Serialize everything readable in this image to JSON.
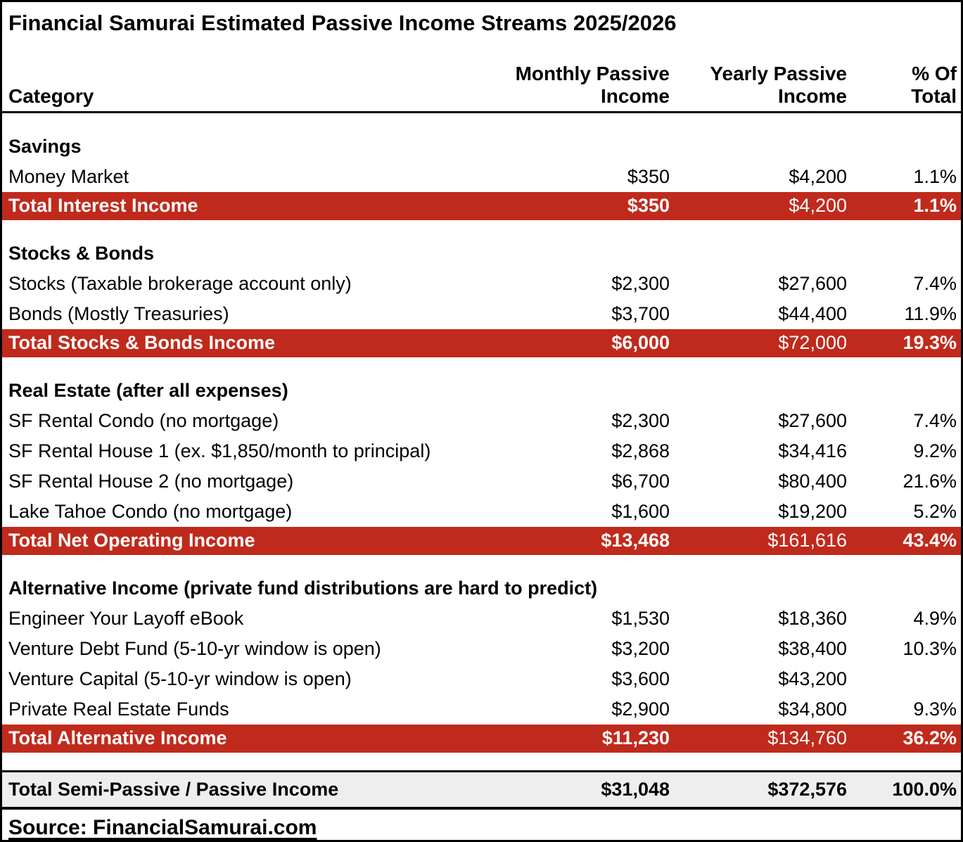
{
  "title": "Financial Samurai Estimated Passive Income Streams 2025/2026",
  "columns": {
    "category": "Category",
    "monthly": "Monthly Passive\nIncome",
    "yearly": "Yearly Passive\nIncome",
    "pct": "% Of\nTotal"
  },
  "sections": [
    {
      "header": "Savings",
      "rows": [
        {
          "label": "Money Market",
          "monthly": "$350",
          "yearly": "$4,200",
          "pct": "1.1%"
        }
      ],
      "total": {
        "label": "Total Interest Income",
        "monthly": "$350",
        "yearly": "$4,200",
        "pct": "1.1%"
      }
    },
    {
      "header": "Stocks & Bonds",
      "rows": [
        {
          "label": "Stocks (Taxable brokerage account only)",
          "monthly": "$2,300",
          "yearly": "$27,600",
          "pct": "7.4%"
        },
        {
          "label": "Bonds (Mostly Treasuries)",
          "monthly": "$3,700",
          "yearly": "$44,400",
          "pct": "11.9%"
        }
      ],
      "total": {
        "label": "Total Stocks & Bonds Income",
        "monthly": "$6,000",
        "yearly": "$72,000",
        "pct": "19.3%"
      }
    },
    {
      "header": "Real Estate (after all expenses)",
      "rows": [
        {
          "label": "SF Rental Condo (no mortgage)",
          "monthly": "$2,300",
          "yearly": "$27,600",
          "pct": "7.4%"
        },
        {
          "label": "SF Rental House 1 (ex. $1,850/month to principal)",
          "monthly": "$2,868",
          "yearly": "$34,416",
          "pct": "9.2%"
        },
        {
          "label": "SF Rental House 2 (no mortgage)",
          "monthly": "$6,700",
          "yearly": "$80,400",
          "pct": "21.6%"
        },
        {
          "label": "Lake Tahoe Condo (no mortgage)",
          "monthly": "$1,600",
          "yearly": "$19,200",
          "pct": "5.2%"
        }
      ],
      "total": {
        "label": "Total Net Operating Income",
        "monthly": "$13,468",
        "yearly": "$161,616",
        "pct": "43.4%"
      }
    },
    {
      "header": "Alternative Income (private fund distributions are hard to predict)",
      "rows": [
        {
          "label": "Engineer Your Layoff eBook",
          "monthly": "$1,530",
          "yearly": "$18,360",
          "pct": "4.9%"
        },
        {
          "label": "Venture Debt Fund (5-10-yr window is open)",
          "monthly": "$3,200",
          "yearly": "$38,400",
          "pct": "10.3%"
        },
        {
          "label": "Venture Capital (5-10-yr window is open)",
          "monthly": "$3,600",
          "yearly": "$43,200",
          "pct": ""
        },
        {
          "label": "Private Real Estate Funds",
          "monthly": "$2,900",
          "yearly": "$34,800",
          "pct": "9.3%"
        }
      ],
      "total": {
        "label": "Total Alternative Income",
        "monthly": "$11,230",
        "yearly": "$134,760",
        "pct": "36.2%"
      }
    }
  ],
  "grand_total": {
    "label": "Total Semi-Passive / Passive Income",
    "monthly": "$31,048",
    "yearly": "$372,576",
    "pct": "100.0%"
  },
  "source": "Source: FinancialSamurai.com",
  "colors": {
    "total_row_bg": "#C02A1C",
    "total_row_text": "#FFFFFF",
    "grand_total_bg": "#EEEEEE",
    "border": "#000000",
    "body_text": "#000000"
  },
  "chart_data": {
    "type": "table",
    "title": "Financial Samurai Estimated Passive Income Streams 2025/2026",
    "columns": [
      "Category",
      "Monthly Passive Income",
      "Yearly Passive Income",
      "% Of Total"
    ],
    "rows": [
      [
        "Savings",
        "",
        "",
        "",
        "section"
      ],
      [
        "Money Market",
        "$350",
        "$4,200",
        "1.1%",
        "item"
      ],
      [
        "Total Interest Income",
        "$350",
        "$4,200",
        "1.1%",
        "total"
      ],
      [
        "Stocks & Bonds",
        "",
        "",
        "",
        "section"
      ],
      [
        "Stocks (Taxable brokerage account only)",
        "$2,300",
        "$27,600",
        "7.4%",
        "item"
      ],
      [
        "Bonds (Mostly Treasuries)",
        "$3,700",
        "$44,400",
        "11.9%",
        "item"
      ],
      [
        "Total Stocks & Bonds Income",
        "$6,000",
        "$72,000",
        "19.3%",
        "total"
      ],
      [
        "Real Estate (after all expenses)",
        "",
        "",
        "",
        "section"
      ],
      [
        "SF Rental Condo (no mortgage)",
        "$2,300",
        "$27,600",
        "7.4%",
        "item"
      ],
      [
        "SF Rental House 1 (ex. $1,850/month to principal)",
        "$2,868",
        "$34,416",
        "9.2%",
        "item"
      ],
      [
        "SF Rental House 2 (no mortgage)",
        "$6,700",
        "$80,400",
        "21.6%",
        "item"
      ],
      [
        "Lake Tahoe Condo (no mortgage)",
        "$1,600",
        "$19,200",
        "5.2%",
        "item"
      ],
      [
        "Total Net Operating Income",
        "$13,468",
        "$161,616",
        "43.4%",
        "total"
      ],
      [
        "Alternative Income (private fund distributions are hard to predict)",
        "",
        "",
        "",
        "section"
      ],
      [
        "Engineer Your Layoff eBook",
        "$1,530",
        "$18,360",
        "4.9%",
        "item"
      ],
      [
        "Venture Debt Fund (5-10-yr window is open)",
        "$3,200",
        "$38,400",
        "10.3%",
        "item"
      ],
      [
        "Venture Capital (5-10-yr window is open)",
        "$3,600",
        "$43,200",
        "",
        "item"
      ],
      [
        "Private Real Estate Funds",
        "$2,900",
        "$34,800",
        "9.3%",
        "item"
      ],
      [
        "Total Alternative Income",
        "$11,230",
        "$134,760",
        "36.2%",
        "total"
      ],
      [
        "Total Semi-Passive / Passive Income",
        "$31,048",
        "$372,576",
        "100.0%",
        "grand_total"
      ]
    ],
    "source": "Source: FinancialSamurai.com"
  }
}
